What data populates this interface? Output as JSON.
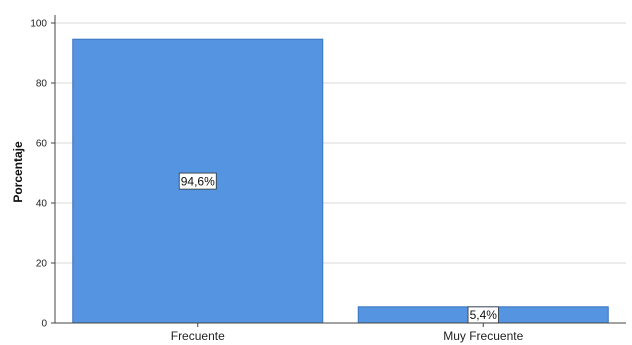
{
  "chart_data": {
    "type": "bar",
    "categories": [
      "Frecuente",
      "Muy Frecuente"
    ],
    "values": [
      94.6,
      5.4
    ],
    "data_labels": [
      "94,6%",
      "5,4%"
    ],
    "ylabel": "Porcentaje",
    "xlabel": "",
    "ylim": [
      0,
      100
    ],
    "yticks": [
      0,
      20,
      40,
      60,
      80,
      100
    ],
    "ytick_labels": [
      "0",
      "20",
      "40",
      "60",
      "80",
      "100"
    ],
    "grid": "horizontal",
    "bar_color": "#5494E0",
    "bar_edge_color": "#3B74BF"
  }
}
